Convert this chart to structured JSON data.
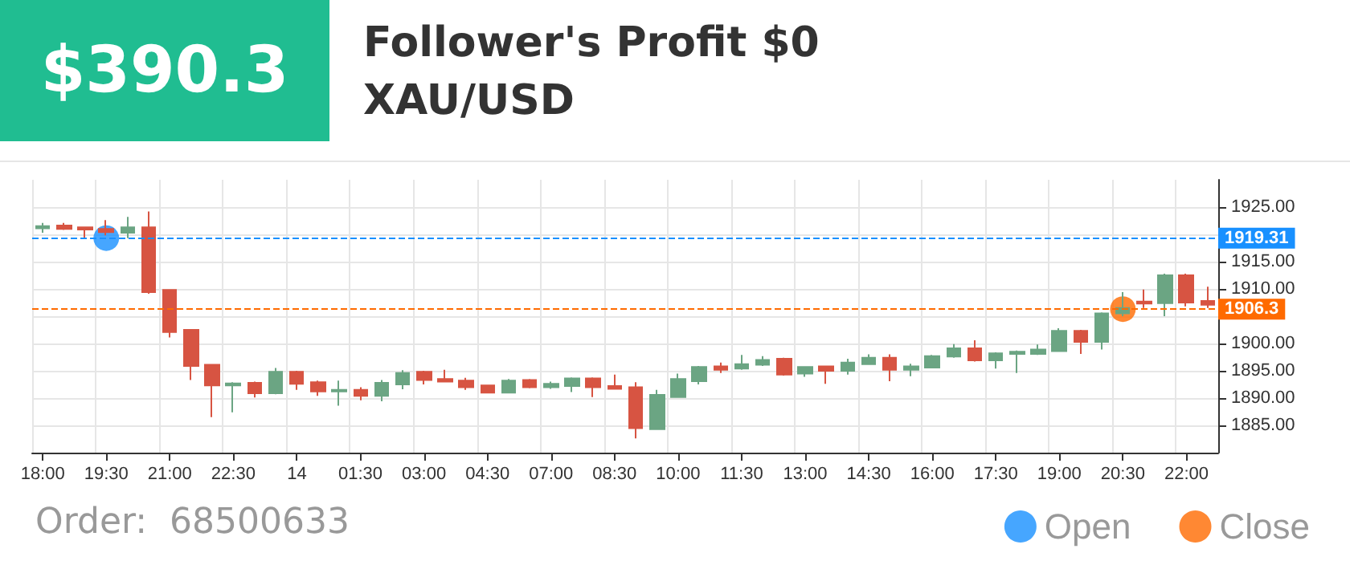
{
  "chart_data": {
    "type": "candlestick",
    "title": "Follower's Profit $0",
    "subtitle": "XAU/USD",
    "annotations": [
      "$390.3",
      "Order:  68500633"
    ],
    "categories": [
      "18:00",
      null,
      null,
      "19:30",
      null,
      null,
      "21:00",
      null,
      null,
      "22:30",
      null,
      null,
      "14",
      null,
      null,
      "01:30",
      null,
      null,
      "03:00",
      null,
      null,
      "04:30",
      null,
      null,
      "07:00",
      null,
      null,
      "08:30",
      null,
      null,
      "10:00",
      null,
      null,
      "11:30",
      null,
      null,
      "13:00",
      null,
      null,
      "14:30",
      null,
      null,
      "16:00",
      null,
      null,
      "17:30",
      null,
      null,
      "19:00",
      null,
      null,
      "20:30",
      null,
      null,
      "22:00",
      null
    ],
    "ohlc": [
      [
        1921.1,
        1922.1,
        1920.3,
        1921.5
      ],
      [
        1921.6,
        1922.1,
        1920.8,
        1921.0
      ],
      [
        1921.3,
        1921.4,
        1919.1,
        1920.9
      ],
      [
        1921.0,
        1922.6,
        1919.8,
        1920.4
      ],
      [
        1920.3,
        1923.2,
        1919.3,
        1921.3
      ],
      [
        1921.3,
        1924.2,
        1909.1,
        1909.4
      ],
      [
        1909.8,
        1909.8,
        1901.1,
        1902.1
      ],
      [
        1902.5,
        1902.5,
        1893.3,
        1895.9
      ],
      [
        1896.1,
        1896.1,
        1886.5,
        1892.3
      ],
      [
        1892.3,
        1892.9,
        1887.4,
        1892.7
      ],
      [
        1892.8,
        1893.0,
        1890.1,
        1890.9
      ],
      [
        1890.9,
        1895.5,
        1890.7,
        1894.8
      ],
      [
        1894.8,
        1895.0,
        1891.5,
        1892.6
      ],
      [
        1892.9,
        1893.2,
        1890.4,
        1891.2
      ],
      [
        1891.2,
        1893.2,
        1888.6,
        1891.5
      ],
      [
        1891.5,
        1892.0,
        1889.6,
        1890.4
      ],
      [
        1890.4,
        1893.3,
        1889.4,
        1892.8
      ],
      [
        1892.5,
        1895.1,
        1891.6,
        1894.6
      ],
      [
        1894.8,
        1895.0,
        1892.5,
        1893.3
      ],
      [
        1893.5,
        1895.2,
        1893.0,
        1893.0
      ],
      [
        1893.2,
        1893.7,
        1891.5,
        1892.0
      ],
      [
        1892.3,
        1892.3,
        1890.9,
        1891.0
      ],
      [
        1891.0,
        1893.5,
        1890.9,
        1893.2
      ],
      [
        1893.3,
        1893.5,
        1891.8,
        1892.0
      ],
      [
        1892.0,
        1893.0,
        1891.7,
        1892.6
      ],
      [
        1892.2,
        1893.8,
        1891.1,
        1893.6
      ],
      [
        1893.6,
        1893.8,
        1890.2,
        1892.0
      ],
      [
        1892.2,
        1894.3,
        1891.7,
        1891.7
      ],
      [
        1892.0,
        1892.9,
        1882.6,
        1884.5
      ],
      [
        1884.3,
        1891.5,
        1884.3,
        1890.6
      ],
      [
        1890.2,
        1894.5,
        1890.2,
        1893.5
      ],
      [
        1893.1,
        1895.9,
        1892.5,
        1895.7
      ],
      [
        1895.8,
        1896.5,
        1894.6,
        1895.2
      ],
      [
        1895.4,
        1897.9,
        1895.2,
        1896.2
      ],
      [
        1896.1,
        1897.7,
        1895.9,
        1897.0
      ],
      [
        1897.2,
        1897.4,
        1894.1,
        1894.3
      ],
      [
        1894.5,
        1895.7,
        1893.9,
        1895.7
      ],
      [
        1895.8,
        1895.8,
        1892.6,
        1895.0
      ],
      [
        1895.0,
        1897.2,
        1894.3,
        1896.5
      ],
      [
        1896.2,
        1898.0,
        1896.2,
        1897.4
      ],
      [
        1897.4,
        1898.0,
        1893.1,
        1895.2
      ],
      [
        1895.2,
        1896.3,
        1894.0,
        1895.8
      ],
      [
        1895.6,
        1897.9,
        1895.6,
        1897.7
      ],
      [
        1897.6,
        1899.9,
        1897.4,
        1899.1
      ],
      [
        1899.1,
        1900.6,
        1896.7,
        1896.9
      ],
      [
        1896.9,
        1898.4,
        1895.4,
        1898.2
      ],
      [
        1898.1,
        1898.7,
        1894.6,
        1898.5
      ],
      [
        1898.1,
        1899.8,
        1897.9,
        1898.9
      ],
      [
        1898.6,
        1902.8,
        1898.6,
        1902.3
      ],
      [
        1902.3,
        1902.5,
        1898.1,
        1900.3
      ],
      [
        1900.3,
        1905.7,
        1898.9,
        1905.5
      ],
      [
        1905.5,
        1909.4,
        1905.0,
        1906.5
      ],
      [
        1907.7,
        1909.9,
        1906.5,
        1907.3
      ],
      [
        1907.4,
        1912.8,
        1905.0,
        1912.5
      ],
      [
        1912.5,
        1912.8,
        1906.8,
        1907.5
      ],
      [
        1907.8,
        1910.4,
        1906.5,
        1907.1
      ]
    ],
    "series": [
      {
        "type": "scatter",
        "name": "Open",
        "color": "#1890ff",
        "x": [
          "19:30"
        ],
        "values": [
          1919.31
        ]
      },
      {
        "type": "scatter",
        "name": "Close",
        "color": "#ff6a00",
        "x": [
          "20:30"
        ],
        "values": [
          1906.3
        ]
      }
    ],
    "ref_lines": [
      {
        "axis": "y",
        "value": 1919.31,
        "label": "1919.31",
        "color": "#1890ff",
        "line_style": "dashed"
      },
      {
        "axis": "y",
        "value": 1906.3,
        "label": "1906.3",
        "color": "#ff6a00",
        "line_style": "dashed"
      }
    ],
    "ylim": [
      1880,
      1930
    ],
    "yticks": [
      {
        "value": 1885,
        "label": "1885.00"
      },
      {
        "value": 1890,
        "label": "1890.00"
      },
      {
        "value": 1895,
        "label": "1895.00"
      },
      {
        "value": 1900,
        "label": "1900.00"
      },
      {
        "value": 1905,
        "label": null
      },
      {
        "value": 1910,
        "label": "1910.00"
      },
      {
        "value": 1915,
        "label": "1915.00"
      },
      {
        "value": 1920,
        "label": null
      },
      {
        "value": 1925,
        "label": "1925.00"
      }
    ],
    "grid": true,
    "legend": "bottom right",
    "marker": "circle"
  }
}
